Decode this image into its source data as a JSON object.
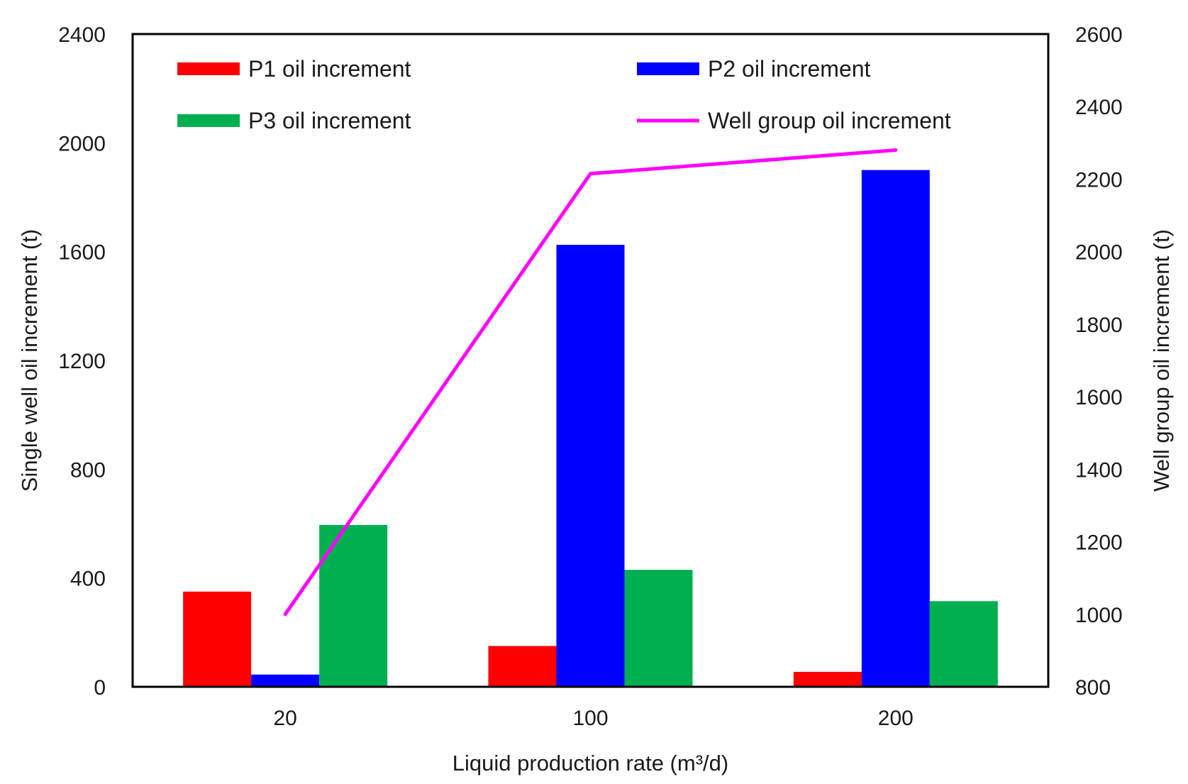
{
  "chart_data": {
    "type": "bar+line",
    "title": "",
    "categories": [
      "20",
      "100",
      "200"
    ],
    "xlabel": "Liquid production rate (m³/d)",
    "ylabel_left": "Single well oil increment (t)",
    "ylabel_right": "Well group oil increment (t)",
    "ylim_left": [
      0,
      2400
    ],
    "ylim_right": [
      800,
      2600
    ],
    "yticks_left": [
      0,
      400,
      800,
      1200,
      1600,
      2000,
      2400
    ],
    "yticks_right": [
      800,
      1000,
      1200,
      1400,
      1600,
      1800,
      2000,
      2200,
      2400,
      2600
    ],
    "grid": false,
    "legend_position": "top",
    "series": [
      {
        "name": "P1 oil increment",
        "type": "bar",
        "axis": "left",
        "color": "#ff0000",
        "values": [
          350,
          150,
          55
        ]
      },
      {
        "name": "P2 oil increment",
        "type": "bar",
        "axis": "left",
        "color": "#0000ff",
        "values": [
          45,
          1625,
          1900
        ]
      },
      {
        "name": "P3 oil increment",
        "type": "bar",
        "axis": "left",
        "color": "#00b050",
        "values": [
          595,
          430,
          315
        ]
      },
      {
        "name": "Well group oil increment",
        "type": "line",
        "axis": "right",
        "color": "#ff00ff",
        "values": [
          1000,
          2215,
          2280
        ]
      }
    ]
  }
}
